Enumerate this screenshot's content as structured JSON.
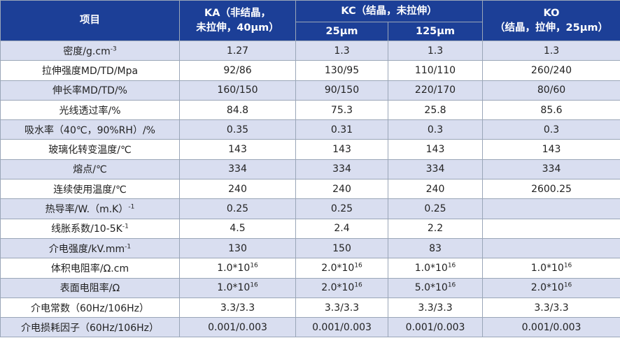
{
  "table": {
    "headers": {
      "item": "项目",
      "ka_line1": "KA（非结晶，",
      "ka_line2": "未拉伸，40µm）",
      "kc": "KC（结晶，未拉伸）",
      "kc_25": "25µm",
      "kc_125": "125µm",
      "ko_line1": "KO",
      "ko_line2": "（结晶，拉伸，25µm）"
    },
    "rows": [
      {
        "label": "密度/g.cm",
        "label_sup": "-3",
        "ka": "1.27",
        "kc25": "1.3",
        "kc125": "1.3",
        "ko": "1.3"
      },
      {
        "label": "拉伸强度MD/TD/Mpa",
        "ka": "92/86",
        "kc25": "130/95",
        "kc125": "110/110",
        "ko": "260/240"
      },
      {
        "label": "伸长率MD/TD/%",
        "ka": "160/150",
        "kc25": "90/150",
        "kc125": "220/170",
        "ko": "80/60"
      },
      {
        "label": "光线透过率/%",
        "ka": "84.8",
        "kc25": "75.3",
        "kc125": "25.8",
        "ko": "85.6"
      },
      {
        "label": "吸水率（40℃，90%RH）/%",
        "ka": "0.35",
        "kc25": "0.31",
        "kc125": "0.3",
        "ko": "0.3"
      },
      {
        "label": "玻璃化转变温度/℃",
        "ka": "143",
        "kc25": "143",
        "kc125": "143",
        "ko": "143"
      },
      {
        "label": "熔点/℃",
        "ka": "334",
        "kc25": "334",
        "kc125": "334",
        "ko": "334"
      },
      {
        "label": "连续使用温度/℃",
        "ka": "240",
        "kc25": "240",
        "kc125": "240",
        "ko": "2600.25"
      },
      {
        "label": "热导率/W.（m.K）",
        "label_sup": "-1",
        "ka": "0.25",
        "kc25": "0.25",
        "kc125": "0.25",
        "ko": ""
      },
      {
        "label": "线胀系数/10-5K",
        "label_sup": "-1",
        "ka": "4.5",
        "kc25": "2.4",
        "kc125": "2.2",
        "ko": ""
      },
      {
        "label": "介电强度/kV.mm",
        "label_sup": "-1",
        "ka": "130",
        "kc25": "150",
        "kc125": "83",
        "ko": ""
      },
      {
        "label": "体积电阻率/Ω.cm",
        "ka": "1.0*10",
        "ka_sup": "16",
        "kc25": "2.0*10",
        "kc25_sup": "16",
        "kc125": "1.0*10",
        "kc125_sup": "16",
        "ko": "1.0*10",
        "ko_sup": "16"
      },
      {
        "label": "表面电阻率/Ω",
        "ka": "1.0*10",
        "ka_sup": "16",
        "kc25": "2.0*10",
        "kc25_sup": "16",
        "kc125": "5.0*10",
        "kc125_sup": "16",
        "ko": "2.0*10",
        "ko_sup": "16"
      },
      {
        "label": "介电常数（60Hz/106Hz）",
        "ka": "3.3/3.3",
        "kc25": "3.3/3.3",
        "kc125": "3.3/3.3",
        "ko": "3.3/3.3"
      },
      {
        "label": "介电损耗因子（60Hz/106Hz）",
        "ka": "0.001/0.003",
        "kc25": "0.001/0.003",
        "kc125": "0.001/0.003",
        "ko": "0.001/0.003"
      }
    ]
  }
}
